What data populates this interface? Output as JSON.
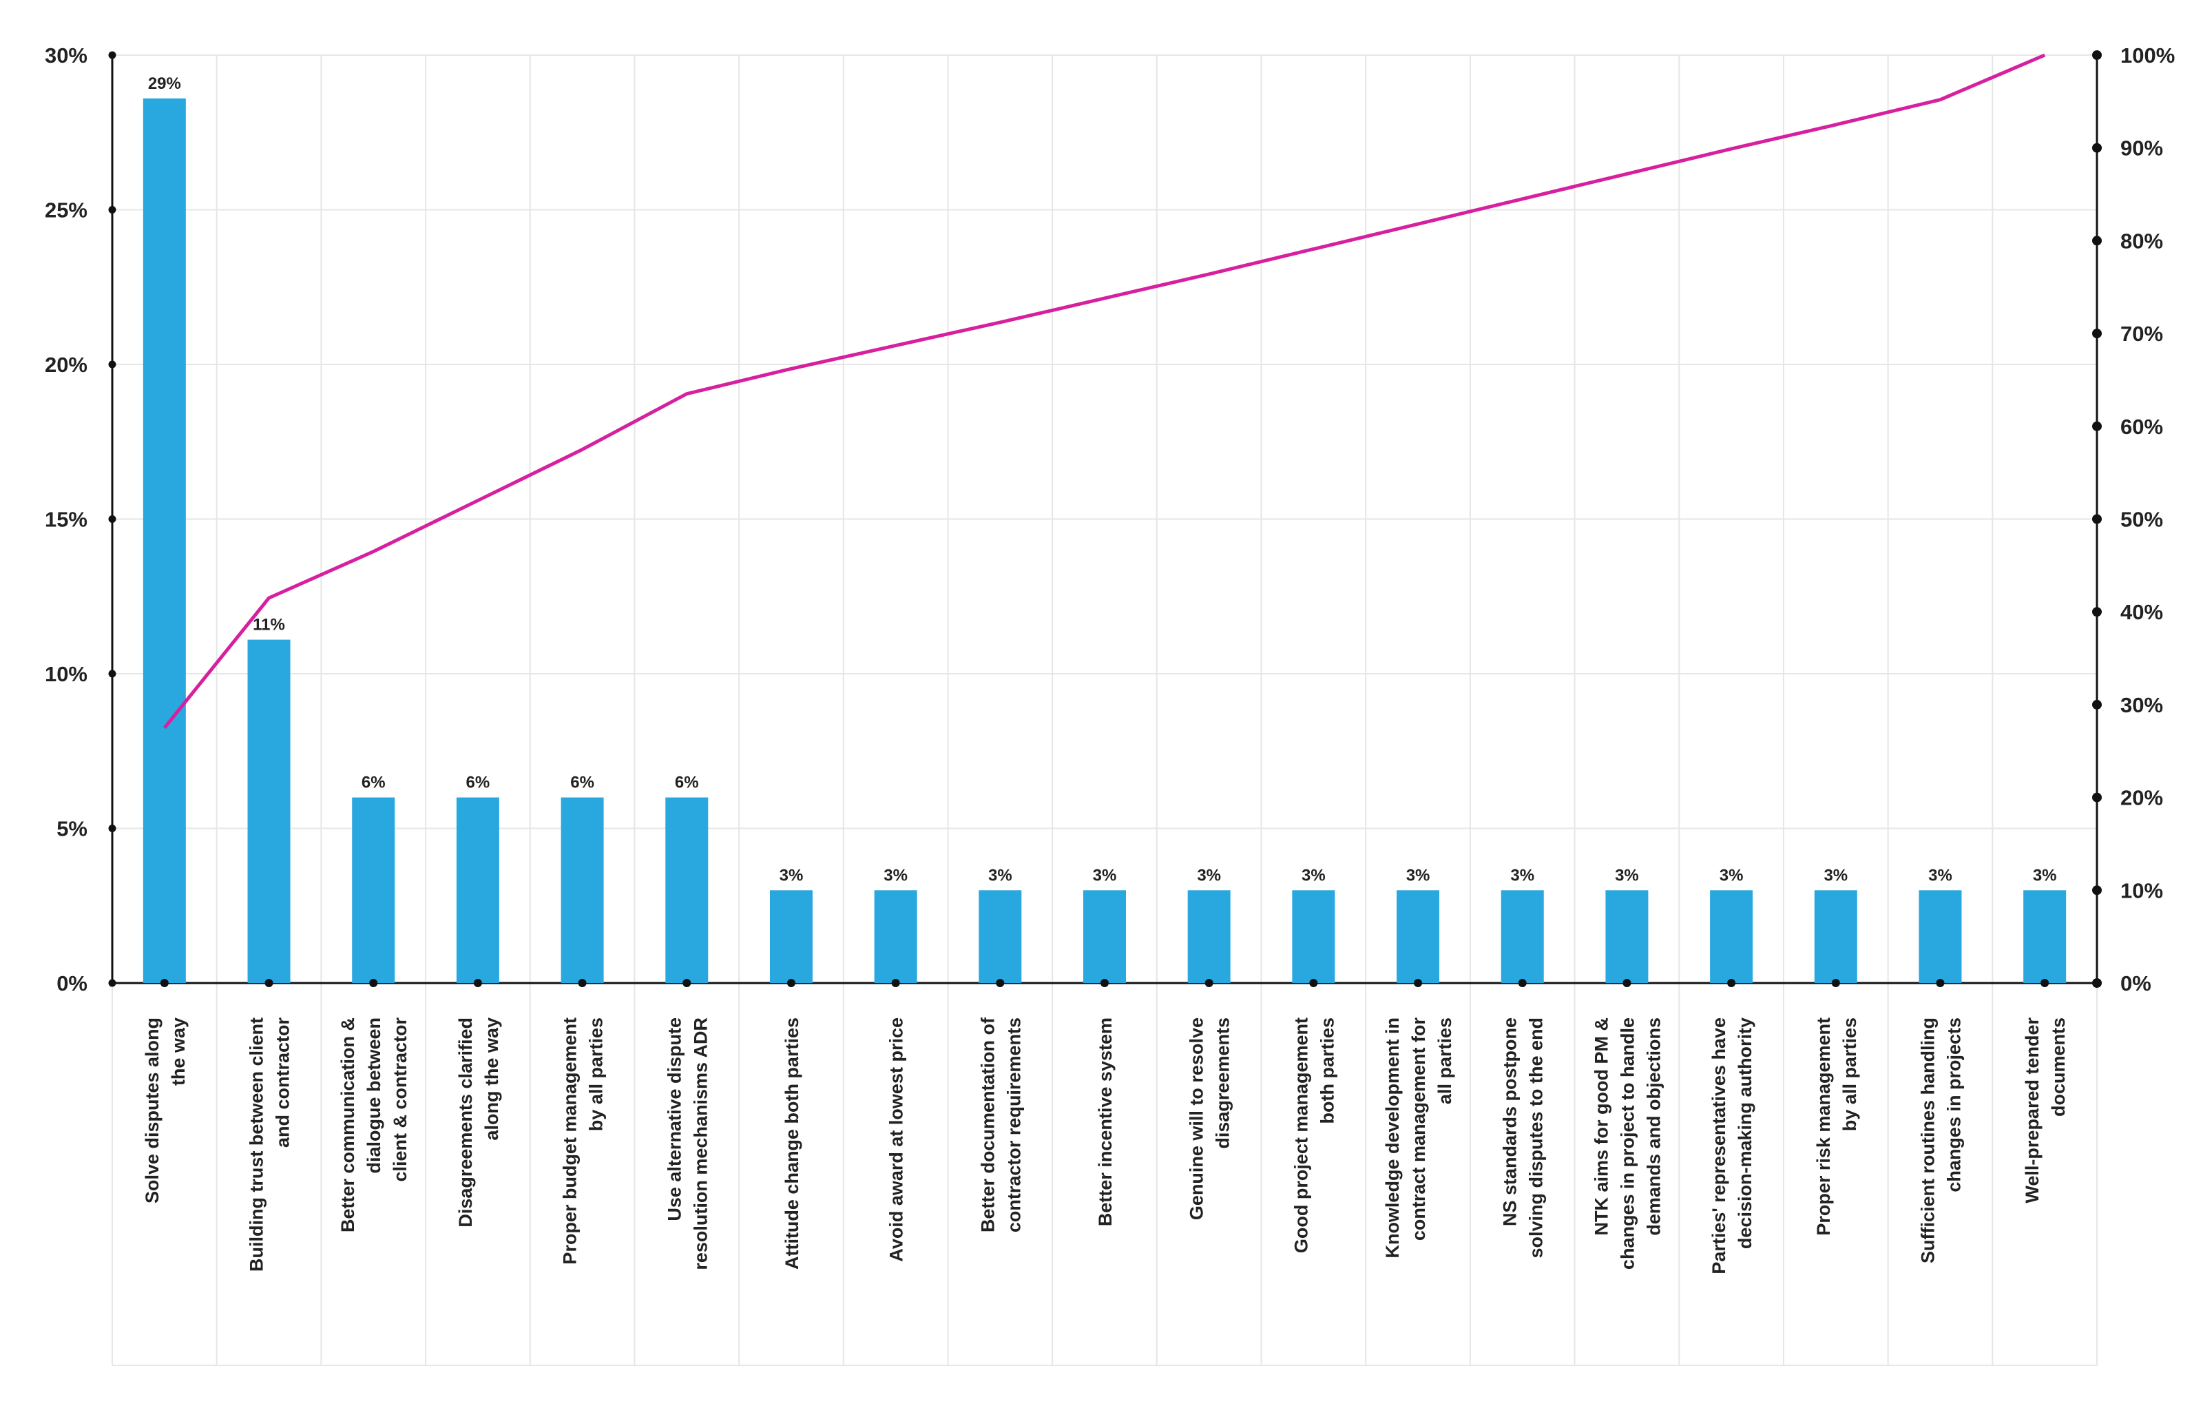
{
  "chart_data": {
    "type": "bar",
    "categories": [
      [
        "Solve disputes along",
        "the way"
      ],
      [
        "Building trust between client",
        "and contractor"
      ],
      [
        "Better communication &",
        "dialogue between",
        "client & contractor"
      ],
      [
        "Disagreements clarified",
        "along the way"
      ],
      [
        "Proper budget management",
        "by all parties"
      ],
      [
        "Use alternative dispute",
        "resolution mechanisms ADR"
      ],
      [
        "Attitude change both parties"
      ],
      [
        "Avoid award at lowest price"
      ],
      [
        "Better documentation of",
        "contractor requirements"
      ],
      [
        "Better incentive system"
      ],
      [
        "Genuine will to resolve",
        "disagreements"
      ],
      [
        "Good project management",
        "both parties"
      ],
      [
        "Knowledge development in",
        "contract management for",
        "all parties"
      ],
      [
        "NS standards postpone",
        "solving disputes to the end"
      ],
      [
        "NTK aims for good PM &",
        "changes in project to handle",
        "demands and objections"
      ],
      [
        "Parties' representatives have",
        "decision-making authority"
      ],
      [
        "Proper risk management",
        "by all parties"
      ],
      [
        "Sufficient routines handling",
        "changes in projects"
      ],
      [
        "Well-prepared tender",
        "documents"
      ]
    ],
    "series": [
      {
        "type": "bar",
        "axis": "left",
        "values": [
          28.6,
          11.1,
          6.0,
          6.0,
          6.0,
          6.0,
          3.0,
          3.0,
          3.0,
          3.0,
          3.0,
          3.0,
          3.0,
          3.0,
          3.0,
          3.0,
          3.0,
          3.0,
          3.0
        ],
        "labels": [
          "29%",
          "11%",
          "6%",
          "6%",
          "6%",
          "6%",
          "3%",
          "3%",
          "3%",
          "3%",
          "3%",
          "3%",
          "3%",
          "3%",
          "3%",
          "3%",
          "3%",
          "3%",
          "3%"
        ],
        "color": "#29a8e0"
      },
      {
        "type": "line",
        "axis": "right",
        "values": [
          27.5,
          41.5,
          46.5,
          52,
          57.5,
          63.5,
          66.2,
          68.7,
          71.2,
          73.8,
          76.4,
          79.1,
          81.8,
          84.5,
          87.2,
          89.9,
          92.5,
          95.2,
          100
        ],
        "color": "#d6209f"
      }
    ],
    "y_left": {
      "min": 0,
      "max": 30,
      "ticks": [
        0,
        5,
        10,
        15,
        20,
        25,
        30
      ],
      "tick_labels": [
        "0%",
        "5%",
        "10%",
        "15%",
        "20%",
        "25%",
        "30%"
      ]
    },
    "y_right": {
      "min": 0,
      "max": 100,
      "ticks": [
        0,
        10,
        20,
        30,
        40,
        50,
        60,
        70,
        80,
        90,
        100
      ],
      "tick_labels": [
        "0%",
        "10%",
        "20%",
        "30%",
        "40%",
        "50%",
        "60%",
        "70%",
        "80%",
        "90%",
        "100%"
      ]
    },
    "title": "",
    "xlabel": "",
    "ylabel": "",
    "grid": true,
    "legend": "none"
  }
}
